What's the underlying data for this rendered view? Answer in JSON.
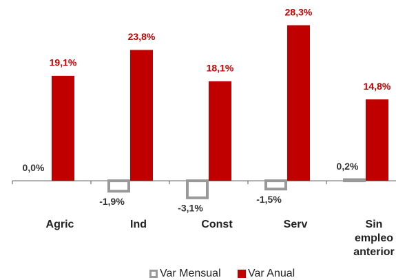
{
  "chart_data": {
    "type": "bar",
    "categories": [
      "Agric",
      "Ind",
      "Const",
      "Serv",
      "Sin empleo anterior"
    ],
    "series": [
      {
        "name": "Var Mensual",
        "color": "#999999",
        "values": [
          0.0,
          -1.9,
          -3.1,
          -1.5,
          0.2
        ],
        "value_labels": [
          "0,0%",
          "-1,9%",
          "-3,1%",
          "-1,5%",
          "0,2%"
        ]
      },
      {
        "name": "Var Anual",
        "color": "#c00000",
        "values": [
          19.1,
          23.8,
          18.1,
          28.3,
          14.8
        ],
        "value_labels": [
          "19,1%",
          "23,8%",
          "18,1%",
          "28,3%",
          "14,8%"
        ]
      }
    ],
    "ylim": [
      -4,
      30
    ]
  }
}
